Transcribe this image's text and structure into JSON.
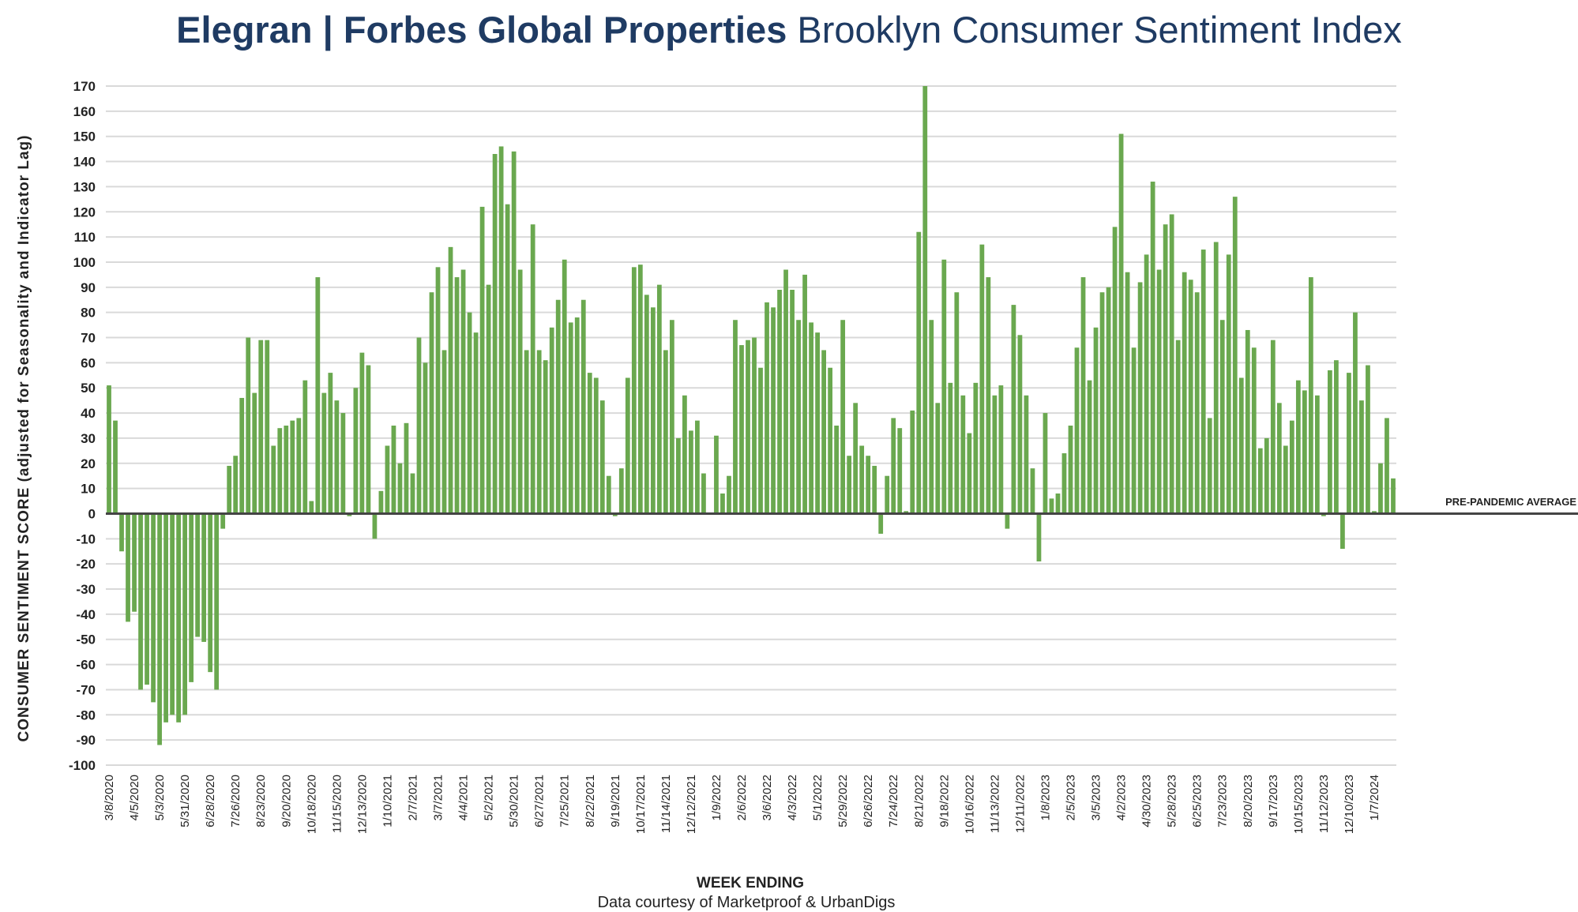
{
  "chart_data": {
    "type": "bar",
    "title_bold": "Elegran | Forbes Global Properties",
    "title_rest": "Brooklyn Consumer Sentiment Index",
    "ylabel": "CONSUMER SENTIMENT SCORE (adjusted for Seasonality and Indicator Lag)",
    "xlabel": "WEEK ENDING",
    "source": "Data courtesy of Marketproof & UrbanDigs",
    "annotation": "PRE-PANDEMIC AVERAGE",
    "ylim": [
      -100,
      170
    ],
    "ytick_step": 10,
    "grid": true,
    "bar_color": "#6aa84f",
    "grid_color": "#d9d9d9",
    "baseline_color": "#444444",
    "title_color": "#1f3b63",
    "x_tick_labels": [
      "3/8/2020",
      "4/5/2020",
      "5/3/2020",
      "5/31/2020",
      "6/28/2020",
      "7/26/2020",
      "8/23/2020",
      "9/20/2020",
      "10/18/2020",
      "11/15/2020",
      "12/13/2020",
      "1/10/2021",
      "2/7/2021",
      "3/7/2021",
      "4/4/2021",
      "5/2/2021",
      "5/30/2021",
      "6/27/2021",
      "7/25/2021",
      "8/22/2021",
      "9/19/2021",
      "10/17/2021",
      "11/14/2021",
      "12/12/2021",
      "1/9/2022",
      "2/6/2022",
      "3/6/2022",
      "4/3/2022",
      "5/1/2022",
      "5/29/2022",
      "6/26/2022",
      "7/24/2022",
      "8/21/2022",
      "9/18/2022",
      "10/16/2022",
      "11/13/2022",
      "12/11/2022",
      "1/8/2023",
      "2/5/2023",
      "3/5/2023",
      "4/2/2023",
      "4/30/2023",
      "5/28/2023",
      "6/25/2023",
      "7/23/2023",
      "8/20/2023",
      "9/17/2023",
      "10/15/2023",
      "11/12/2023",
      "12/10/2023",
      "1/7/2024"
    ],
    "series": [
      {
        "values": [
          51,
          37,
          -15,
          -43,
          -39,
          -70,
          -68,
          -75,
          -92,
          -83,
          -80,
          -83,
          -80,
          -67,
          -49,
          -51,
          -63,
          -70,
          -6,
          19,
          23,
          46,
          70,
          48,
          69,
          69,
          27,
          34,
          35,
          37,
          38,
          53,
          5,
          94,
          48,
          56,
          45,
          40,
          -1,
          50,
          64,
          59,
          -10,
          9,
          27,
          35,
          20,
          36,
          16,
          70,
          60,
          88,
          98,
          65,
          106,
          94,
          97,
          80,
          72,
          122,
          91,
          143,
          146,
          123,
          144,
          97,
          65,
          115,
          65,
          61,
          74,
          85,
          101,
          76,
          78,
          85,
          56,
          54,
          45,
          15,
          -1,
          18,
          54,
          98,
          99,
          87,
          82,
          91,
          65,
          77,
          30,
          47,
          33,
          37,
          16,
          0,
          31,
          8,
          15,
          77,
          67,
          69,
          70,
          58,
          84,
          82,
          89,
          97,
          89,
          77,
          95,
          76,
          72,
          65,
          58,
          35,
          77,
          23,
          44,
          27,
          23,
          19,
          -8,
          15,
          38,
          34,
          1,
          41,
          112,
          170,
          77,
          44,
          101,
          52,
          88,
          47,
          32,
          52,
          107,
          94,
          47,
          51,
          -6,
          83,
          71,
          47,
          18,
          -19,
          40,
          6,
          8,
          24,
          35,
          66,
          94,
          53,
          74,
          88,
          90,
          114,
          151,
          96,
          66,
          92,
          103,
          132,
          97,
          115,
          119,
          69,
          96,
          93,
          88,
          105,
          38,
          108,
          77,
          103,
          126,
          54,
          73,
          66,
          26,
          30,
          69,
          44,
          27,
          37,
          53,
          49,
          94,
          47,
          -1,
          57,
          61,
          -14,
          56,
          80,
          45,
          59,
          1,
          20,
          38,
          14
        ]
      }
    ]
  }
}
